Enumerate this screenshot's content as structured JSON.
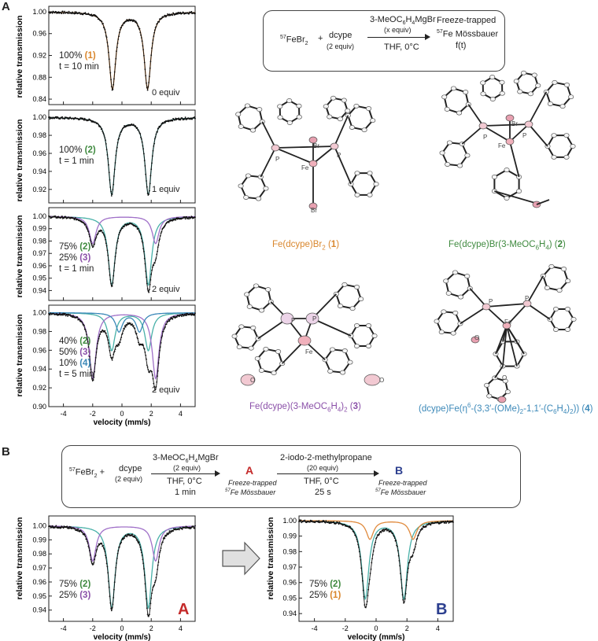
{
  "panels": {
    "a": "A",
    "b": "B"
  },
  "colors": {
    "c1": "#d9862c",
    "c2": "#3f8a3f",
    "c3": "#8a4fa8",
    "c4": "#3b88b8",
    "fit_teal": "#48b0a8",
    "fit_orange": "#e08a3c",
    "fit_purple": "#a070c8",
    "letterA": "#c42a2a",
    "letterB": "#2c3f8f"
  },
  "schemeA": {
    "fe": "57FeBr2",
    "plus": "+",
    "ligand": "dcype",
    "ligand_equiv": "(2 equiv)",
    "reagent": "3-MeOC6H4MgBr",
    "reagent_equiv": "(x equiv)",
    "cond": "THF, 0°C",
    "out1": "Freeze-trapped",
    "out2": "57Fe Mössbauer",
    "out3": "f(t)"
  },
  "schemeB": {
    "fe": "57FeBr2 +",
    "ligand": "dcype",
    "ligand_equiv": "(2 equiv)",
    "reagent1": "3-MeOC6H4MgBr",
    "reagent1_equiv": "(2 equiv)",
    "cond1": "THF, 0°C",
    "time1": "1 min",
    "A": "A",
    "A_sub1": "Freeze-trapped",
    "A_sub2": "57Fe Mössbauer",
    "reagent2": "2-iodo-2-methylpropane",
    "reagent2_equiv": "(20 equiv)",
    "cond2": "THF, 0°C",
    "time2": "25 s",
    "B": "B",
    "B_sub1": "Freeze-trapped",
    "B_sub2": "57Fe Mössbauer"
  },
  "structures": [
    {
      "label": "Fe(dcype)Br2 (1)"
    },
    {
      "label": "Fe(dcype)Br(3-MeOC6H4) (2)"
    },
    {
      "label": "Fe(dcype)(3-MeOC6H4)2 (3)"
    },
    {
      "label": "(dcype)Fe(η6-(3,3′-(OMe)2-1,1′-(C6H4)2)) (4)"
    }
  ],
  "atom_labels": {
    "P": "P",
    "Fe": "Fe",
    "Br": "Br",
    "O": "O"
  },
  "ylabel": "relative transmission",
  "xlabel": "velocity (mm/s)",
  "chart_data": [
    {
      "type": "line",
      "id": "A1",
      "xlabel": "",
      "ylabel": "relative transmission",
      "xlim": [
        -5,
        5
      ],
      "ylim": [
        0.83,
        1.01
      ],
      "yticks": [
        "1.00",
        "0.96",
        "0.92",
        "0.88",
        "0.84"
      ],
      "ytick_vals": [
        1.0,
        0.96,
        0.92,
        0.88,
        0.84
      ],
      "annotation_lines": [
        {
          "pct": "100%",
          "id": "(1)",
          "color": "c1"
        }
      ],
      "time": "t = 10 min",
      "equiv": "0 equiv",
      "components": [
        {
          "name": "1",
          "color": "fit_orange",
          "area": 1.0,
          "peaks": [
            [
              -0.65,
              0.14
            ],
            [
              1.75,
              0.14
            ]
          ]
        }
      ]
    },
    {
      "type": "line",
      "id": "A2",
      "xlabel": "",
      "ylabel": "relative transmission",
      "xlim": [
        -5,
        5
      ],
      "ylim": [
        0.905,
        1.008
      ],
      "yticks": [
        "1.00",
        "0.98",
        "0.96",
        "0.94",
        "0.92"
      ],
      "ytick_vals": [
        1.0,
        0.98,
        0.96,
        0.94,
        0.92
      ],
      "annotation_lines": [
        {
          "pct": "100%",
          "id": "(2)",
          "color": "c2"
        }
      ],
      "time": "t = 1 min",
      "equiv": "1 equiv",
      "components": [
        {
          "name": "2",
          "color": "fit_teal",
          "area": 1.0,
          "peaks": [
            [
              -0.7,
              0.085
            ],
            [
              1.8,
              0.085
            ]
          ]
        }
      ]
    },
    {
      "type": "line",
      "id": "A3",
      "xlabel": "",
      "ylabel": "relative transmission",
      "xlim": [
        -5,
        5
      ],
      "ylim": [
        0.932,
        1.007
      ],
      "yticks": [
        "1.00",
        "0.99",
        "0.98",
        "0.97",
        "0.96",
        "0.95",
        "0.94"
      ],
      "ytick_vals": [
        1.0,
        0.99,
        0.98,
        0.97,
        0.96,
        0.95,
        0.94
      ],
      "annotation_lines": [
        {
          "pct": "75%",
          "id": "(2)",
          "color": "c2"
        },
        {
          "pct": "25%",
          "id": "(3)",
          "color": "c3"
        }
      ],
      "time": "t = 1 min",
      "equiv": "2 equiv",
      "components": [
        {
          "name": "2",
          "color": "fit_teal",
          "area": 0.75,
          "peaks": [
            [
              -0.7,
              0.055
            ],
            [
              1.8,
              0.055
            ]
          ]
        },
        {
          "name": "3",
          "color": "fit_purple",
          "area": 0.25,
          "peaks": [
            [
              -2.0,
              0.022
            ],
            [
              2.3,
              0.022
            ]
          ]
        }
      ]
    },
    {
      "type": "line",
      "id": "A4",
      "xlabel": "velocity (mm/s)",
      "ylabel": "relative transmission",
      "xlim": [
        -5,
        5
      ],
      "ylim": [
        0.9,
        1.008
      ],
      "xticks": [
        "-4",
        "-2",
        "0",
        "2",
        "4"
      ],
      "xtick_vals": [
        -4,
        -2,
        0,
        2,
        4
      ],
      "yticks": [
        "1.00",
        "0.98",
        "0.96",
        "0.94",
        "0.92",
        "0.90"
      ],
      "ytick_vals": [
        1.0,
        0.98,
        0.96,
        0.94,
        0.92,
        0.9
      ],
      "annotation_lines": [
        {
          "pct": "40%",
          "id": "(2)",
          "color": "c2"
        },
        {
          "pct": "50%",
          "id": "(3)",
          "color": "c3"
        },
        {
          "pct": "10%",
          "id": "(4)",
          "color": "c4"
        }
      ],
      "time": "t = 5 min",
      "equiv": "2 equiv",
      "components": [
        {
          "name": "2",
          "color": "fit_teal",
          "area": 0.4,
          "peaks": [
            [
              -0.7,
              0.04
            ],
            [
              1.8,
              0.04
            ]
          ]
        },
        {
          "name": "3",
          "color": "fit_purple",
          "area": 0.5,
          "peaks": [
            [
              -2.0,
              0.07
            ],
            [
              2.3,
              0.07
            ]
          ]
        },
        {
          "name": "4",
          "color": "c4",
          "area": 0.1,
          "peaks": [
            [
              -0.2,
              0.02
            ],
            [
              1.2,
              0.02
            ]
          ]
        }
      ]
    },
    {
      "type": "line",
      "id": "BA",
      "xlabel": "velocity (mm/s)",
      "ylabel": "relative transmission",
      "xlim": [
        -5,
        5
      ],
      "ylim": [
        0.932,
        1.007
      ],
      "xticks": [
        "-4",
        "-2",
        "0",
        "2",
        "4"
      ],
      "xtick_vals": [
        -4,
        -2,
        0,
        2,
        4
      ],
      "yticks": [
        "1.00",
        "0.99",
        "0.98",
        "0.97",
        "0.96",
        "0.95",
        "0.94"
      ],
      "ytick_vals": [
        1.0,
        0.99,
        0.98,
        0.97,
        0.96,
        0.95,
        0.94
      ],
      "annotation_lines": [
        {
          "pct": "75%",
          "id": "(2)",
          "color": "c2"
        },
        {
          "pct": "25%",
          "id": "(3)",
          "color": "c3"
        }
      ],
      "corner": "A",
      "components": [
        {
          "name": "2",
          "color": "fit_teal",
          "area": 0.75,
          "peaks": [
            [
              -0.7,
              0.058
            ],
            [
              1.8,
              0.058
            ]
          ]
        },
        {
          "name": "3",
          "color": "fit_purple",
          "area": 0.25,
          "peaks": [
            [
              -2.0,
              0.025
            ],
            [
              2.3,
              0.025
            ]
          ]
        }
      ]
    },
    {
      "type": "line",
      "id": "BB",
      "xlabel": "velocity (mm/s)",
      "ylabel": "relative transmission",
      "xlim": [
        -5,
        5
      ],
      "ylim": [
        0.935,
        1.003
      ],
      "xticks": [
        "-4",
        "-2",
        "0",
        "2",
        "4"
      ],
      "xtick_vals": [
        -4,
        -2,
        0,
        2,
        4
      ],
      "yticks": [
        "1.00",
        "0.99",
        "0.98",
        "0.97",
        "0.96",
        "0.95",
        "0.94"
      ],
      "ytick_vals": [
        1.0,
        0.99,
        0.98,
        0.97,
        0.96,
        0.95,
        0.94
      ],
      "annotation_lines": [
        {
          "pct": "75%",
          "id": "(2)",
          "color": "c2"
        },
        {
          "pct": "25%",
          "id": "(1)",
          "color": "c1"
        }
      ],
      "corner": "B",
      "components": [
        {
          "name": "2",
          "color": "fit_teal",
          "area": 0.75,
          "peaks": [
            [
              -0.7,
              0.05
            ],
            [
              1.8,
              0.05
            ]
          ]
        },
        {
          "name": "1",
          "color": "fit_orange",
          "area": 0.25,
          "peaks": [
            [
              -0.4,
              0.012
            ],
            [
              2.4,
              0.012
            ]
          ]
        }
      ]
    }
  ]
}
